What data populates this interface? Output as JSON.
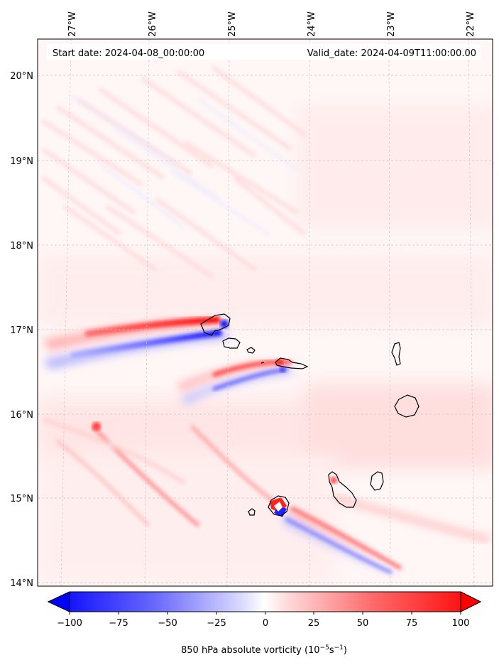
{
  "map": {
    "start_label": "Start date: 2024-04-08_00:00:00",
    "valid_label": "Valid_date: 2024-04-09T11:00:00.00",
    "lon_ticks": [
      "27°W",
      "26°W",
      "25°W",
      "24°W",
      "23°W",
      "22°W"
    ],
    "lat_ticks": [
      "20°N",
      "19°N",
      "18°N",
      "17°N",
      "16°N",
      "15°N",
      "14°N"
    ],
    "gridlines": true,
    "islands": [
      "Santo Antão",
      "São Vicente",
      "Santa Luzia",
      "São Nicolau",
      "Sal",
      "Boa Vista",
      "Santiago",
      "Maio",
      "Fogo",
      "Brava"
    ]
  },
  "colorbar": {
    "label_prefix": "850 hPa absolute vorticity (10",
    "label_exp1": "−5",
    "label_mid": "s",
    "label_exp2": "−1",
    "label_suffix": ")",
    "ticks": [
      "−100",
      "−75",
      "−50",
      "−25",
      "0",
      "25",
      "50",
      "75",
      "100"
    ],
    "min_color": "#0000ff",
    "mid_color": "#ffffff",
    "max_color": "#ff0000"
  }
}
